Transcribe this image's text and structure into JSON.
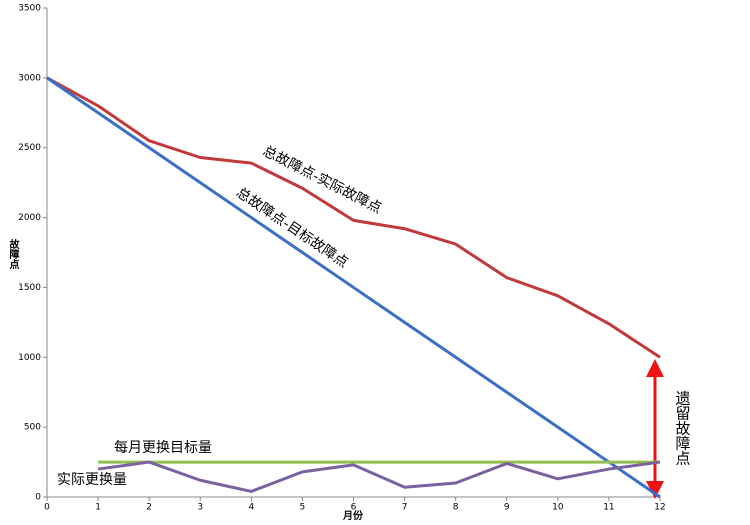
{
  "chart_data": {
    "type": "line",
    "x_label": "月份",
    "y_label": "故障点",
    "x": [
      0,
      1,
      2,
      3,
      4,
      5,
      6,
      7,
      8,
      9,
      10,
      11,
      12
    ],
    "xlim": [
      0,
      12
    ],
    "xticks": [
      0,
      1,
      2,
      3,
      4,
      5,
      6,
      7,
      8,
      9,
      10,
      11,
      12
    ],
    "ylim": [
      0,
      3500
    ],
    "yticks": [
      0,
      500,
      1000,
      1500,
      2000,
      2500,
      3000,
      3500
    ],
    "grid": false,
    "series": [
      {
        "name": "总故障点-实际故障点",
        "color": "#c0393b",
        "values": [
          3000,
          2800,
          2550,
          2430,
          2390,
          2210,
          1980,
          1920,
          1810,
          1570,
          1440,
          1240,
          1000
        ]
      },
      {
        "name": "总故障点-目标故障点",
        "color": "#3b6fc4",
        "values": [
          3000,
          2750,
          2500,
          2250,
          2000,
          1750,
          1500,
          1250,
          1000,
          750,
          500,
          250,
          0
        ]
      },
      {
        "name": "每月更换目标量",
        "color": "#92c050",
        "values": [
          null,
          250,
          250,
          250,
          250,
          250,
          250,
          250,
          250,
          250,
          250,
          250,
          250
        ]
      },
      {
        "name": "实际更换量",
        "color": "#7b61a0",
        "values": [
          null,
          200,
          250,
          120,
          40,
          180,
          230,
          70,
          100,
          240,
          130,
          200,
          250
        ]
      }
    ],
    "annotation": "遗留故障点"
  }
}
